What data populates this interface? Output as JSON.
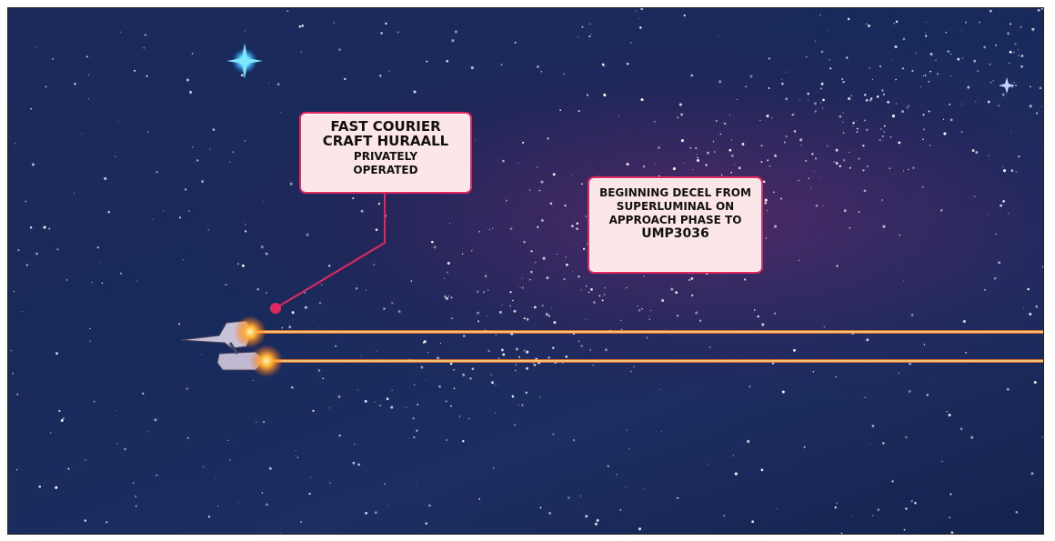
{
  "captions": [
    {
      "title": "FAST COURIER CRAFT HURAALL",
      "subtitle": "PRIVATELY OPERATED"
    },
    {
      "text": "BEGINNING DECEL FROM SUPERLUMINAL ON APPROACH PHASE TO",
      "emphasis": "UMP3036"
    }
  ]
}
